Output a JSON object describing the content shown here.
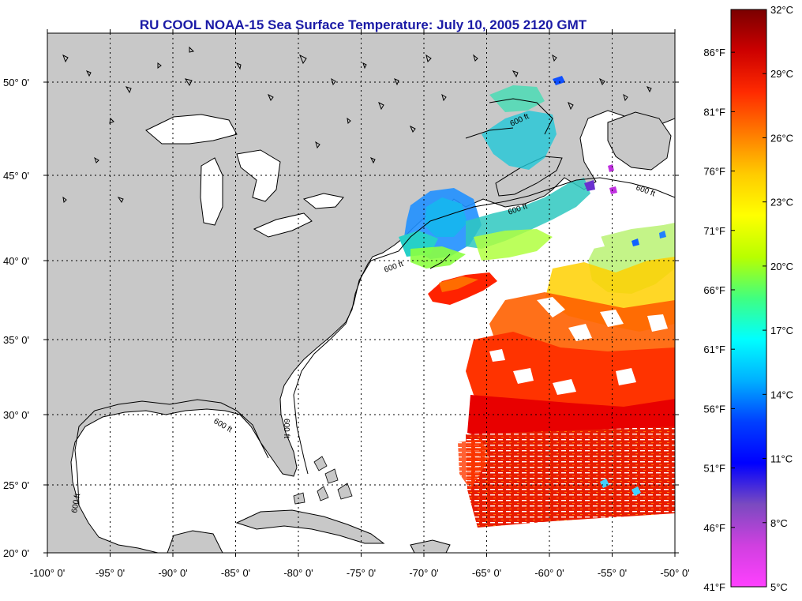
{
  "title": "RU COOL  NOAA-15  Sea Surface Temperature:  July 10, 2005 2120 GMT",
  "lon_labels": [
    "-100° 0'",
    "-95° 0'",
    "-90° 0'",
    "-85° 0'",
    "-80° 0'",
    "-75° 0'",
    "-70° 0'",
    "-65° 0'",
    "-60° 0'",
    "-55° 0'",
    "-50° 0'"
  ],
  "lon_values": [
    -100,
    -95,
    -90,
    -85,
    -80,
    -75,
    -70,
    -65,
    -60,
    -55,
    -50
  ],
  "lat_labels": [
    "20° 0'",
    "25° 0'",
    "30° 0'",
    "35° 0'",
    "40° 0'",
    "45° 0'",
    "50° 0'"
  ],
  "lat_values": [
    20,
    25,
    30,
    35,
    40,
    45,
    50
  ],
  "contour_label": "600 ft",
  "colorbar": {
    "celsius_labels": [
      "32°C",
      "29°C",
      "26°C",
      "23°C",
      "20°C",
      "17°C",
      "14°C",
      "11°C",
      "8°C",
      "5°C"
    ],
    "celsius_values": [
      32,
      29,
      26,
      23,
      20,
      17,
      14,
      11,
      8,
      5
    ],
    "fahrenheit_labels": [
      "86°F",
      "81°F",
      "76°F",
      "71°F",
      "66°F",
      "61°F",
      "56°F",
      "51°F",
      "46°F",
      "41°F"
    ],
    "fahrenheit_values": [
      86,
      81,
      76,
      71,
      66,
      61,
      56,
      51,
      46,
      41
    ],
    "stops": [
      "#7a0000",
      "#cc0000",
      "#ff2a00",
      "#ff7a00",
      "#ffcc00",
      "#ffff00",
      "#b8ff00",
      "#40ff80",
      "#00ffff",
      "#00b0ff",
      "#0040ff",
      "#0000ff",
      "#7a4ac0",
      "#d040e0",
      "#ff40ff"
    ]
  },
  "colors": {
    "land": "#c8c8c8",
    "ocean": "#ffffff",
    "title": "#1a1aa6",
    "warm_sst": "#ff3a00",
    "hot_sst": "#e60000",
    "cool_sst": "#1ea0ff",
    "mid_sst": "#30d8c0"
  }
}
